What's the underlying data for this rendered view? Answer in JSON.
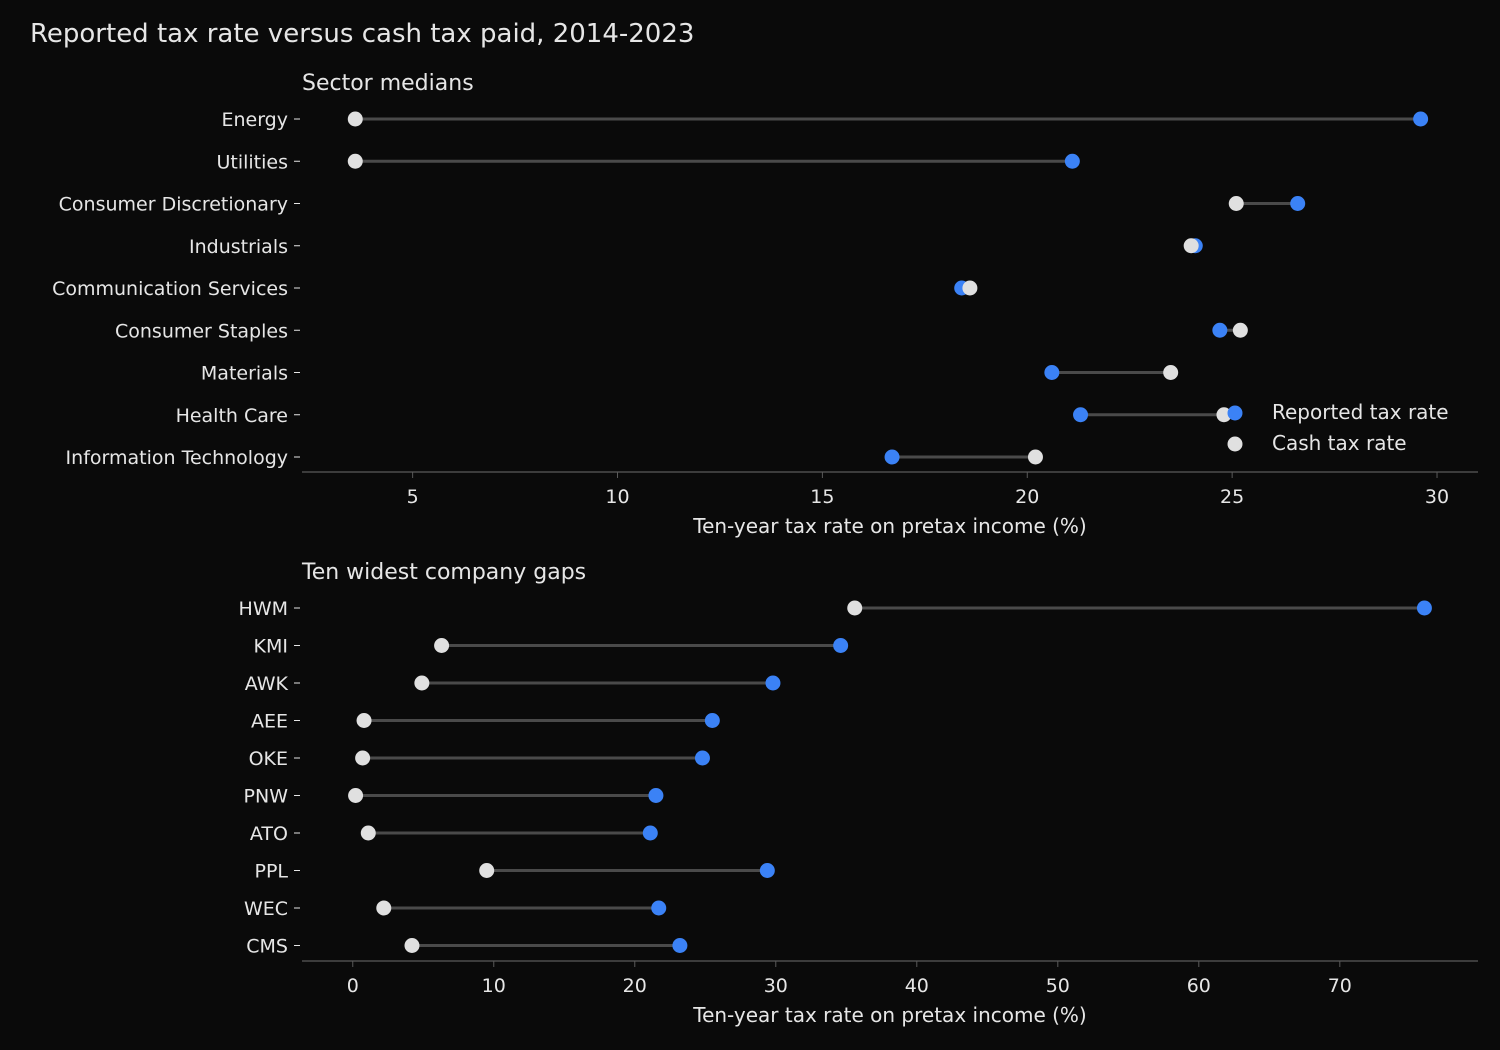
{
  "title": "Reported tax rate versus cash tax paid, 2014-2023",
  "colors": {
    "background": "#0a0a0a",
    "reported": "#3b82f6",
    "cash": "#e0e0e0",
    "connector": "#4a4a4a",
    "axis": "#5a5a5a",
    "text": "#e6e6e6"
  },
  "legend": {
    "position": "lower-right",
    "reported_label": "Reported tax rate",
    "cash_label": "Cash tax rate"
  },
  "chart_data": [
    {
      "type": "dumbbell",
      "title": "Sector medians",
      "xlabel": "Ten-year tax rate on pretax income (%)",
      "xlim": [
        2.3,
        31.0
      ],
      "xticks": [
        5,
        10,
        15,
        20,
        25,
        30
      ],
      "grid": false,
      "categories": [
        "Energy",
        "Utilities",
        "Consumer Discretionary",
        "Industrials",
        "Communication Services",
        "Consumer Staples",
        "Materials",
        "Health Care",
        "Information Technology"
      ],
      "series": [
        {
          "name": "Reported tax rate",
          "values": [
            29.6,
            21.1,
            26.6,
            24.1,
            18.4,
            24.7,
            20.6,
            21.3,
            16.7
          ]
        },
        {
          "name": "Cash tax rate",
          "values": [
            3.6,
            3.6,
            25.1,
            24.0,
            18.6,
            25.2,
            23.5,
            24.8,
            20.2
          ]
        }
      ]
    },
    {
      "type": "dumbbell",
      "title": "Ten widest company gaps",
      "xlabel": "Ten-year tax rate on pretax income (%)",
      "xlim": [
        -3.6,
        79.8
      ],
      "xticks": [
        0,
        10,
        20,
        30,
        40,
        50,
        60,
        70
      ],
      "grid": false,
      "categories": [
        "HWM",
        "KMI",
        "AWK",
        "AEE",
        "OKE",
        "PNW",
        "ATO",
        "PPL",
        "WEC",
        "CMS"
      ],
      "series": [
        {
          "name": "Reported tax rate",
          "values": [
            76.0,
            34.6,
            29.8,
            25.5,
            24.8,
            21.5,
            21.1,
            29.4,
            21.7,
            23.2
          ]
        },
        {
          "name": "Cash tax rate",
          "values": [
            35.6,
            6.3,
            4.9,
            0.8,
            0.7,
            0.2,
            1.1,
            9.5,
            2.2,
            4.2
          ]
        }
      ]
    }
  ]
}
